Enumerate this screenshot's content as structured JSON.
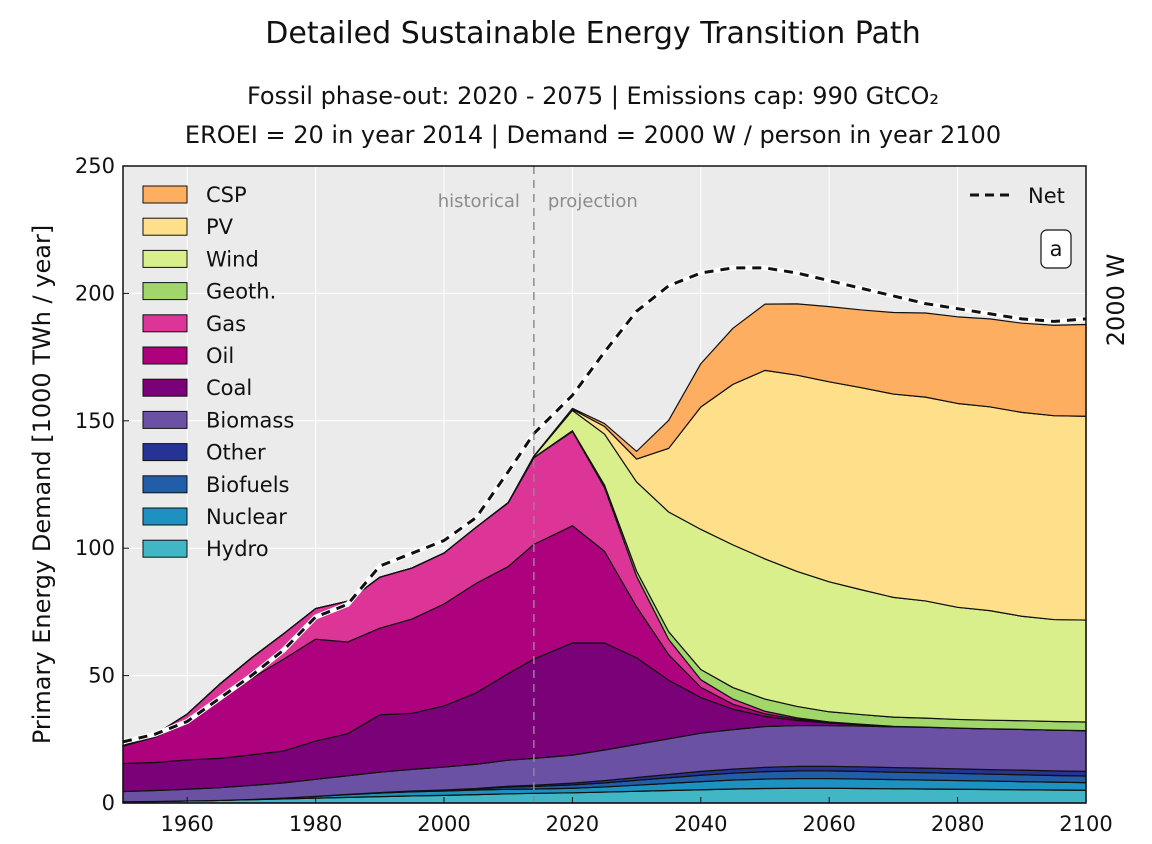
{
  "chart_data": {
    "type": "area",
    "title": "Detailed Sustainable Energy Transition Path",
    "subtitle_line1": "Fossil phase-out: 2020 - 2075   |   Emissions cap: 990 GtCO₂",
    "subtitle_line2": "EROEI = 20 in year 2014   |   Demand = 2000 W / person in year 2100",
    "xlabel": "",
    "ylabel": "Primary Energy Demand [1000 TWh / year]",
    "right_label": "2000 W",
    "panel_label": "a",
    "xlim": [
      1950,
      2100
    ],
    "ylim": [
      0,
      250
    ],
    "xticks": [
      1960,
      1980,
      2000,
      2020,
      2040,
      2060,
      2080,
      2100
    ],
    "yticks": [
      0,
      50,
      100,
      150,
      200,
      250
    ],
    "divider_year": 2014,
    "annotation_left": "historical",
    "annotation_right": "projection",
    "net_label": "Net",
    "x": [
      1950,
      1955,
      1960,
      1965,
      1970,
      1975,
      1980,
      1985,
      1990,
      1995,
      2000,
      2005,
      2010,
      2014,
      2020,
      2025,
      2030,
      2035,
      2040,
      2045,
      2050,
      2055,
      2060,
      2065,
      2070,
      2075,
      2080,
      2085,
      2090,
      2095,
      2100
    ],
    "series": [
      {
        "name": "Hydro",
        "color": "#41b6c4",
        "values": [
          0.5,
          0.6,
          0.8,
          1.0,
          1.3,
          1.6,
          1.9,
          2.2,
          2.5,
          2.8,
          3.0,
          3.3,
          3.6,
          3.8,
          4.0,
          4.3,
          4.6,
          4.9,
          5.2,
          5.5,
          5.7,
          5.8,
          5.8,
          5.7,
          5.6,
          5.5,
          5.4,
          5.3,
          5.2,
          5.1,
          5.0
        ]
      },
      {
        "name": "Nuclear",
        "color": "#1d91c0",
        "values": [
          0,
          0,
          0,
          0,
          0.1,
          0.3,
          0.7,
          1.1,
          1.4,
          1.6,
          1.7,
          1.8,
          1.8,
          1.7,
          1.8,
          2.0,
          2.4,
          2.8,
          3.2,
          3.5,
          3.7,
          3.8,
          3.8,
          3.7,
          3.6,
          3.5,
          3.4,
          3.3,
          3.2,
          3.1,
          3.0
        ]
      },
      {
        "name": "Biofuels",
        "color": "#225ea8",
        "values": [
          0,
          0,
          0,
          0,
          0,
          0,
          0,
          0.1,
          0.2,
          0.2,
          0.3,
          0.4,
          0.8,
          1.0,
          1.3,
          1.6,
          1.9,
          2.2,
          2.5,
          2.7,
          2.9,
          3.0,
          3.0,
          3.0,
          2.9,
          2.9,
          2.8,
          2.7,
          2.7,
          2.6,
          2.6
        ]
      },
      {
        "name": "Other",
        "color": "#253494",
        "values": [
          0,
          0,
          0,
          0,
          0,
          0,
          0,
          0,
          0,
          0.1,
          0.1,
          0.2,
          0.4,
          0.5,
          0.7,
          0.9,
          1.1,
          1.3,
          1.5,
          1.6,
          1.7,
          1.8,
          1.8,
          1.8,
          1.8,
          1.8,
          1.8,
          1.8,
          1.8,
          1.8,
          1.8
        ]
      },
      {
        "name": "Biomass",
        "color": "#6a51a3",
        "values": [
          4,
          4.3,
          4.6,
          5,
          5.5,
          6,
          6.7,
          7.3,
          8,
          8.5,
          9,
          9.5,
          10.2,
          10.5,
          11,
          12,
          13,
          14,
          15,
          15.5,
          16,
          16,
          16,
          16,
          16,
          16,
          16,
          16,
          16,
          16,
          16
        ]
      },
      {
        "name": "Coal",
        "color": "#7a0177",
        "values": [
          11,
          11,
          11.5,
          11.5,
          12,
          12.5,
          15,
          16.5,
          22.5,
          22,
          24,
          28,
          34,
          39,
          44,
          42,
          34,
          23,
          14,
          8,
          4,
          2,
          1,
          0.5,
          0.2,
          0.1,
          0,
          0,
          0,
          0,
          0
        ]
      },
      {
        "name": "Oil",
        "color": "#ae017e",
        "values": [
          6.8,
          10,
          15,
          23,
          30,
          36,
          40,
          36,
          34,
          37,
          40,
          43,
          42,
          45,
          46,
          36,
          20,
          10,
          4,
          2,
          1,
          0.5,
          0.2,
          0.1,
          0,
          0,
          0,
          0,
          0,
          0,
          0
        ]
      },
      {
        "name": "Gas",
        "color": "#dd3497",
        "values": [
          0.2,
          1,
          3,
          6,
          8,
          10,
          12,
          16,
          20,
          20,
          20,
          22,
          25,
          34,
          37,
          25,
          12,
          6,
          3,
          2,
          1,
          0.5,
          0.2,
          0.1,
          0,
          0,
          0,
          0,
          0,
          0,
          0
        ]
      },
      {
        "name": "Geoth.",
        "color": "#a1d76a",
        "values": [
          0,
          0,
          0,
          0,
          0,
          0,
          0,
          0,
          0,
          0,
          0,
          0,
          0,
          0.1,
          0.3,
          1,
          2,
          3,
          4,
          4.5,
          4.8,
          4.5,
          4,
          3.8,
          3.6,
          3.5,
          3.4,
          3.4,
          3.4,
          3.4,
          3.4
        ]
      },
      {
        "name": "Wind",
        "color": "#d9ef8b",
        "values": [
          0,
          0,
          0,
          0,
          0,
          0,
          0,
          0,
          0,
          0,
          0,
          0,
          0.1,
          0.4,
          8,
          20,
          35,
          47,
          55,
          56,
          55,
          53,
          51,
          49,
          47,
          46,
          44,
          43,
          41,
          40,
          40
        ]
      },
      {
        "name": "PV",
        "color": "#fee08b",
        "values": [
          0,
          0,
          0,
          0,
          0,
          0,
          0,
          0,
          0,
          0,
          0,
          0,
          0,
          0.1,
          0.4,
          3,
          9,
          25,
          48,
          63,
          74,
          77,
          78.5,
          79.3,
          79.8,
          80,
          80,
          80,
          80,
          80,
          80
        ]
      },
      {
        "name": "CSP",
        "color": "#fdae61",
        "values": [
          0,
          0,
          0,
          0,
          0,
          0,
          0,
          0,
          0,
          0,
          0,
          0,
          0,
          0.1,
          0.4,
          1.1,
          3,
          11,
          17,
          22,
          26,
          28,
          29.5,
          30.5,
          32,
          33,
          34,
          34.5,
          35,
          35.5,
          36
        ]
      }
    ],
    "net": [
      24,
      27,
      32,
      41,
      50,
      60,
      73,
      78,
      93,
      98,
      103,
      112,
      130,
      145,
      160,
      177,
      193,
      203,
      208,
      210,
      210,
      208,
      205,
      202,
      199,
      196,
      194,
      192,
      190,
      189,
      190
    ]
  }
}
